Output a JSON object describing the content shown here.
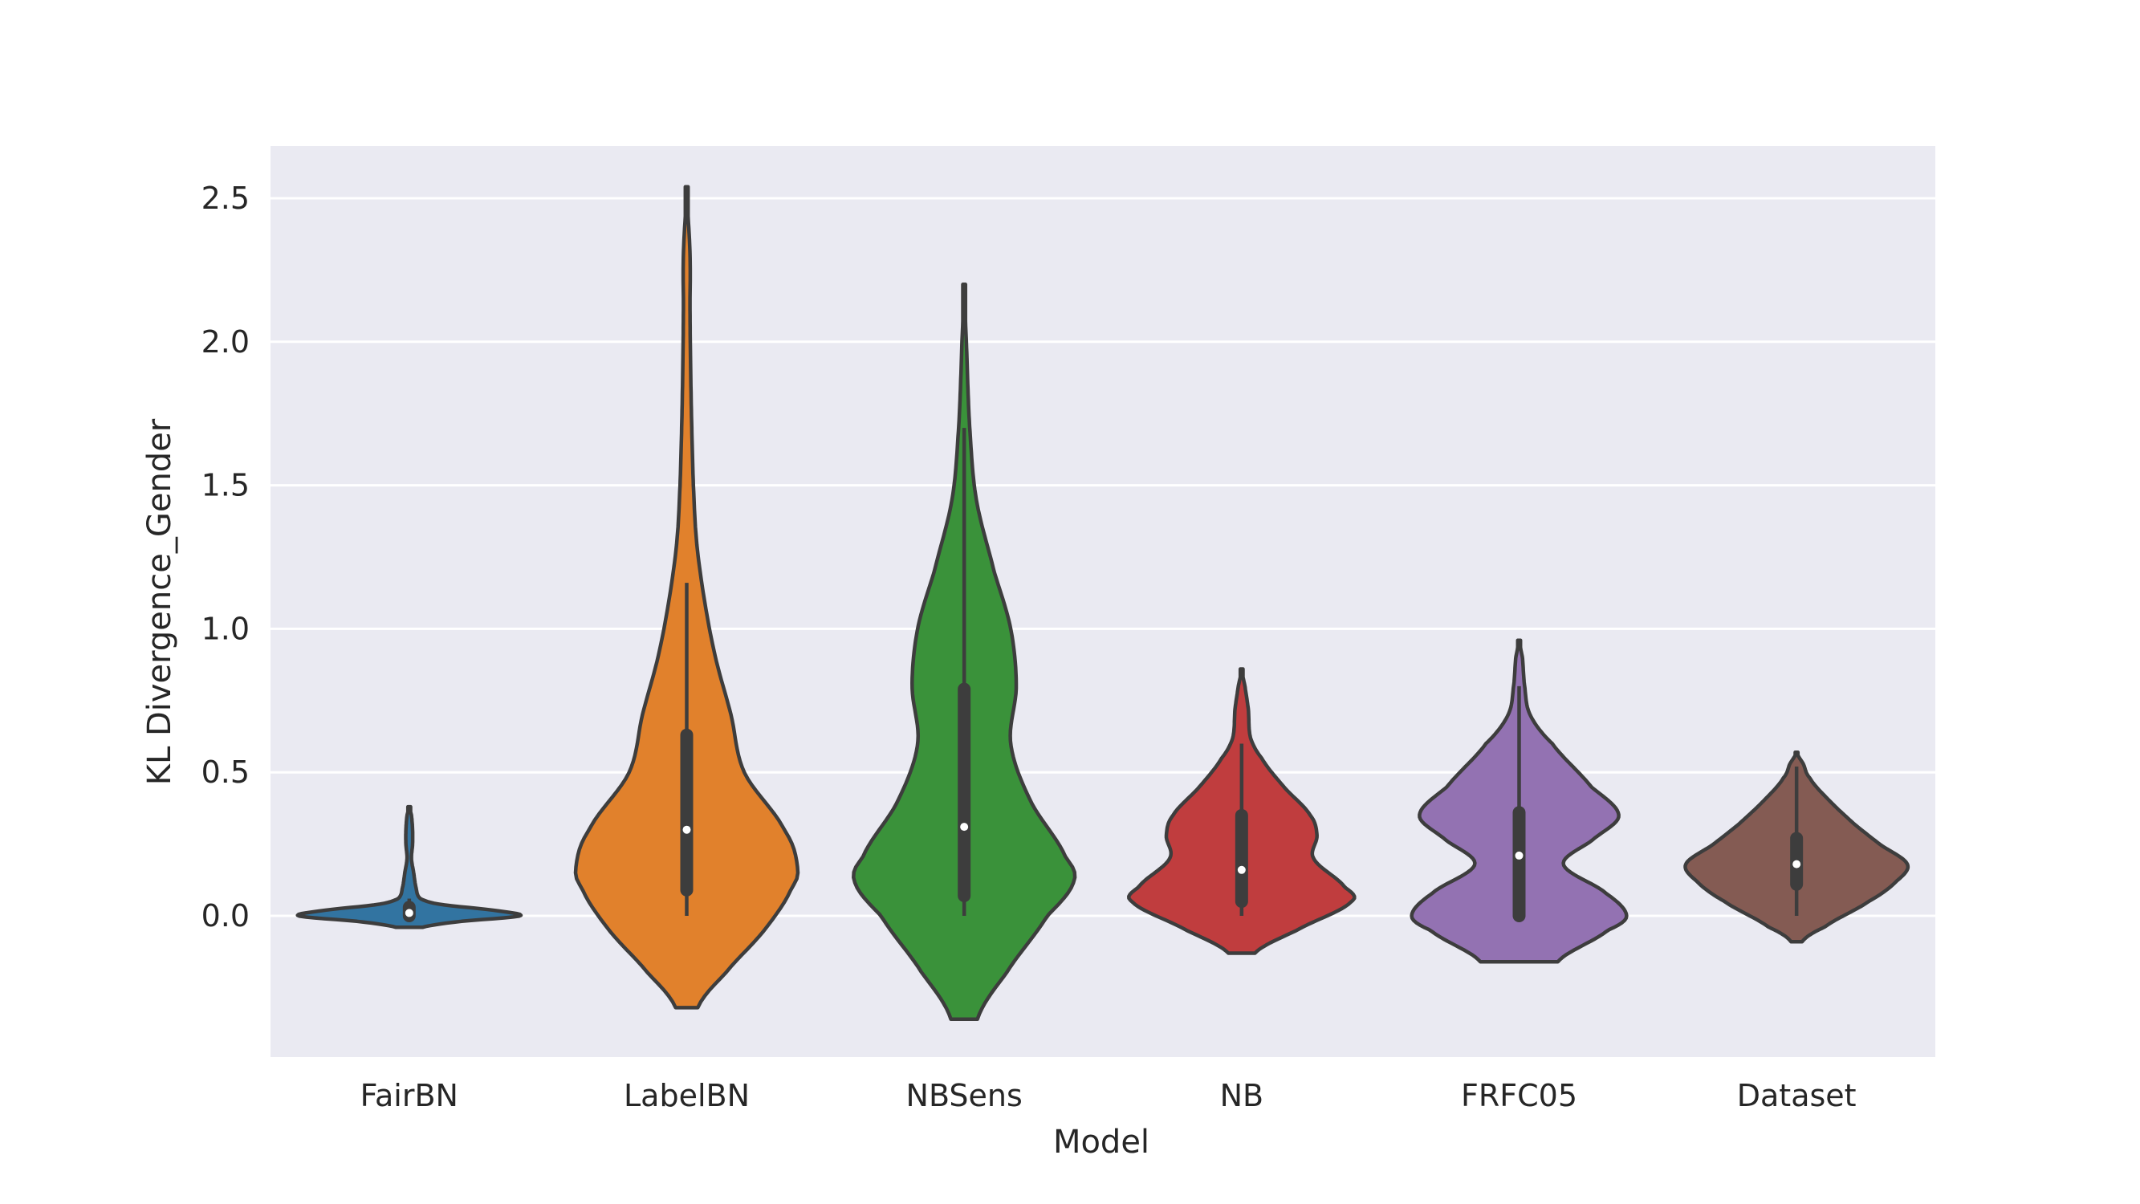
{
  "chart_data": {
    "type": "violin",
    "title": "",
    "xlabel": "Model",
    "ylabel": "KL Divergence_Gender",
    "ylim": [
      -0.5,
      2.67
    ],
    "yticks": [
      "0.0",
      "0.5",
      "1.0",
      "1.5",
      "2.0",
      "2.5"
    ],
    "grid": true,
    "background": "#eaeaf2",
    "categories": [
      "FairBN",
      "LabelBN",
      "NBSens",
      "NB",
      "FRFC05",
      "Dataset"
    ],
    "series": [
      {
        "category": "FairBN",
        "color": "#3274a1",
        "min": 0.0,
        "q1": 0.0,
        "median": 0.01,
        "q3": 0.03,
        "max": 0.06,
        "kde_range": [
          -0.04,
          0.38
        ],
        "kde": [
          [
            -0.04,
            0.12
          ],
          [
            -0.02,
            0.45
          ],
          [
            0.0,
            1.0
          ],
          [
            0.02,
            0.75
          ],
          [
            0.04,
            0.28
          ],
          [
            0.06,
            0.1
          ],
          [
            0.1,
            0.06
          ],
          [
            0.15,
            0.04
          ],
          [
            0.2,
            0.02
          ],
          [
            0.25,
            0.03
          ],
          [
            0.3,
            0.03
          ],
          [
            0.35,
            0.02
          ],
          [
            0.38,
            0.0
          ]
        ]
      },
      {
        "category": "LabelBN",
        "color": "#e1812c",
        "min": 0.0,
        "q1": 0.09,
        "median": 0.3,
        "q3": 0.63,
        "max": 1.16,
        "kde_range": [
          -0.32,
          2.54
        ],
        "kde": [
          [
            -0.32,
            0.1
          ],
          [
            -0.2,
            0.35
          ],
          [
            -0.05,
            0.7
          ],
          [
            0.1,
            0.95
          ],
          [
            0.17,
            1.0
          ],
          [
            0.3,
            0.88
          ],
          [
            0.5,
            0.52
          ],
          [
            0.7,
            0.4
          ],
          [
            0.9,
            0.26
          ],
          [
            1.1,
            0.16
          ],
          [
            1.3,
            0.09
          ],
          [
            1.5,
            0.06
          ],
          [
            1.8,
            0.04
          ],
          [
            2.1,
            0.03
          ],
          [
            2.3,
            0.03
          ],
          [
            2.54,
            0.0
          ]
        ]
      },
      {
        "category": "NBSens",
        "color": "#3a923a",
        "min": 0.0,
        "q1": 0.07,
        "median": 0.31,
        "q3": 0.79,
        "max": 1.7,
        "kde_range": [
          -0.36,
          2.2
        ],
        "kde": [
          [
            -0.36,
            0.12
          ],
          [
            -0.2,
            0.38
          ],
          [
            0.0,
            0.75
          ],
          [
            0.12,
            0.99
          ],
          [
            0.2,
            0.92
          ],
          [
            0.4,
            0.6
          ],
          [
            0.6,
            0.42
          ],
          [
            0.8,
            0.47
          ],
          [
            1.0,
            0.42
          ],
          [
            1.2,
            0.27
          ],
          [
            1.45,
            0.11
          ],
          [
            1.7,
            0.05
          ],
          [
            2.0,
            0.02
          ],
          [
            2.2,
            0.0
          ]
        ]
      },
      {
        "category": "NB",
        "color": "#c03d3e",
        "min": 0.0,
        "q1": 0.05,
        "median": 0.16,
        "q3": 0.35,
        "max": 0.6,
        "kde_range": [
          -0.13,
          0.86
        ],
        "kde": [
          [
            -0.13,
            0.12
          ],
          [
            -0.05,
            0.5
          ],
          [
            0.05,
            0.99
          ],
          [
            0.1,
            0.93
          ],
          [
            0.2,
            0.65
          ],
          [
            0.28,
            0.68
          ],
          [
            0.35,
            0.62
          ],
          [
            0.45,
            0.38
          ],
          [
            0.55,
            0.18
          ],
          [
            0.62,
            0.08
          ],
          [
            0.72,
            0.06
          ],
          [
            0.8,
            0.03
          ],
          [
            0.86,
            0.0
          ]
        ]
      },
      {
        "category": "FRFC05",
        "color": "#9372b2",
        "min": 0.0,
        "q1": 0.0,
        "median": 0.21,
        "q3": 0.36,
        "max": 0.8,
        "kde_range": [
          -0.16,
          0.96
        ],
        "kde": [
          [
            -0.16,
            0.35
          ],
          [
            -0.05,
            0.8
          ],
          [
            0.0,
            0.97
          ],
          [
            0.08,
            0.78
          ],
          [
            0.18,
            0.4
          ],
          [
            0.27,
            0.68
          ],
          [
            0.35,
            0.9
          ],
          [
            0.45,
            0.65
          ],
          [
            0.6,
            0.3
          ],
          [
            0.7,
            0.1
          ],
          [
            0.8,
            0.05
          ],
          [
            0.9,
            0.03
          ],
          [
            0.96,
            0.0
          ]
        ]
      },
      {
        "category": "Dataset",
        "color": "#845b53",
        "min": 0.0,
        "q1": 0.11,
        "median": 0.18,
        "q3": 0.27,
        "max": 0.52,
        "kde_range": [
          -0.09,
          0.57
        ],
        "kde": [
          [
            -0.09,
            0.05
          ],
          [
            -0.04,
            0.25
          ],
          [
            0.05,
            0.65
          ],
          [
            0.12,
            0.9
          ],
          [
            0.18,
            1.0
          ],
          [
            0.25,
            0.75
          ],
          [
            0.32,
            0.52
          ],
          [
            0.4,
            0.3
          ],
          [
            0.48,
            0.12
          ],
          [
            0.53,
            0.06
          ],
          [
            0.57,
            0.0
          ]
        ]
      }
    ]
  }
}
